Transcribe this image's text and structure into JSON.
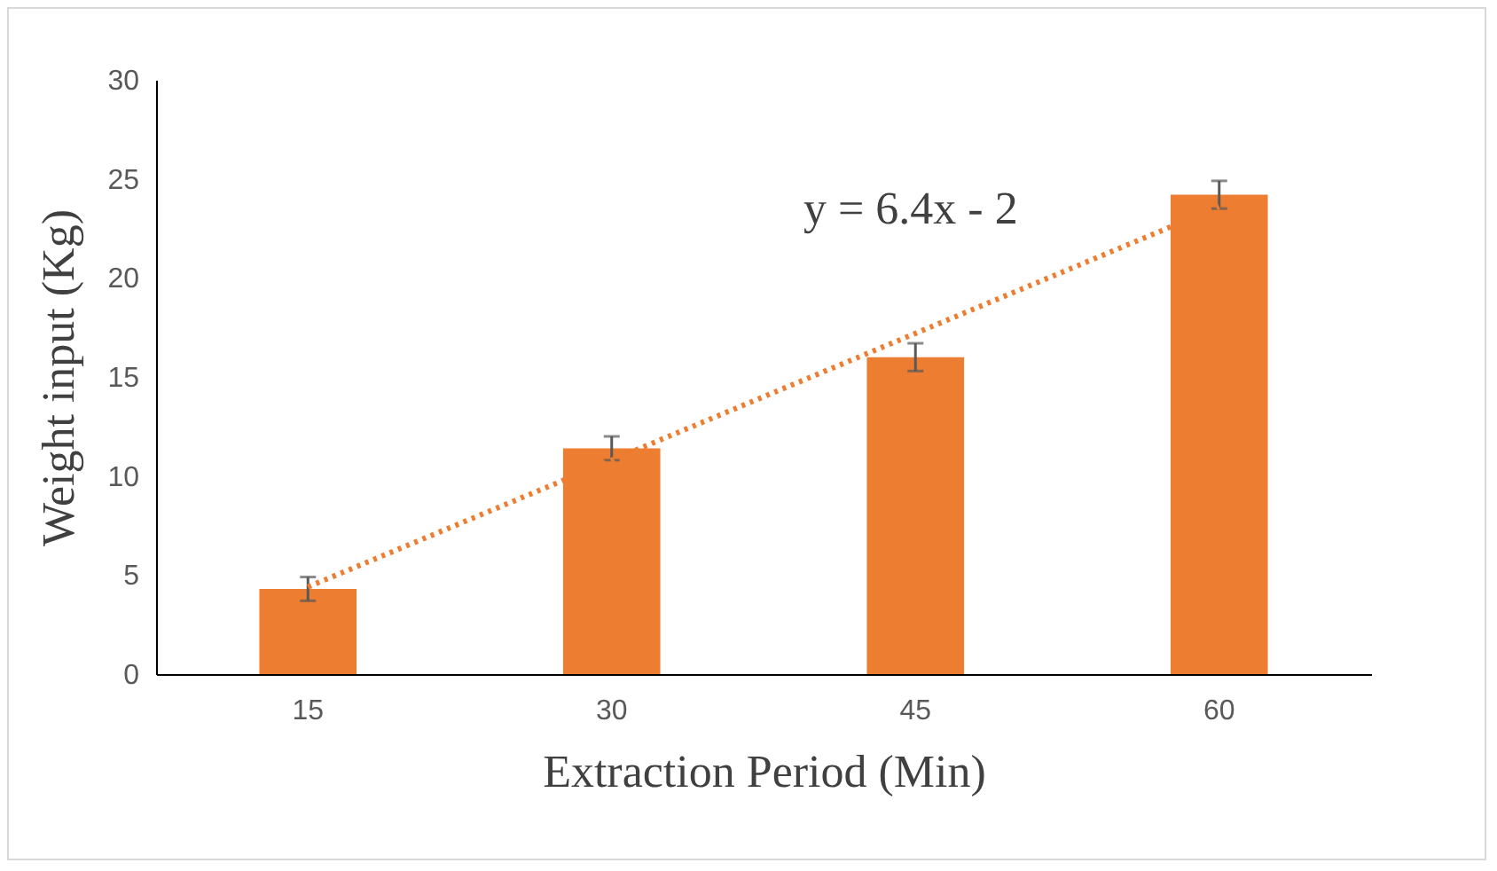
{
  "chart_data": {
    "type": "bar",
    "xlabel": "Extraction Period (Min)",
    "ylabel": "Weight input (Kg)",
    "categories": [
      "15",
      "30",
      "45",
      "60"
    ],
    "series": [
      {
        "color": "#ed7d31",
        "values": [
          4.3,
          11.4,
          16.0,
          24.2
        ],
        "errors": [
          0.6,
          0.6,
          0.7,
          0.7
        ]
      },
      {
        "type": "line",
        "color": "#ed7d31",
        "x": [
          "15",
          "30",
          "45",
          "60"
        ],
        "values": [
          4.4,
          10.8,
          17.2,
          23.6
        ],
        "line_style": "dotted",
        "marker": "none"
      }
    ],
    "annotations": [
      "y = 6.4x - 2"
    ],
    "ylim": [
      0,
      30
    ],
    "yticks": [
      0,
      5,
      10,
      15,
      20,
      25,
      30
    ]
  }
}
